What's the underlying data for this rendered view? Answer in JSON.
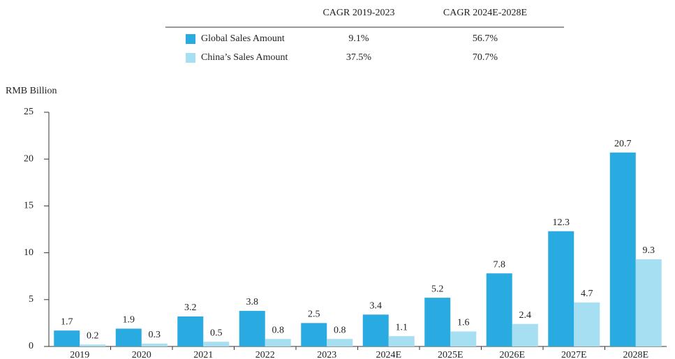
{
  "chart_data": {
    "type": "bar",
    "y_axis_label": "RMB Billion",
    "categories": [
      "2019",
      "2020",
      "2021",
      "2022",
      "2023",
      "2024E",
      "2025E",
      "2026E",
      "2027E",
      "2028E"
    ],
    "cagr_headers": [
      "CAGR 2019-2023",
      "CAGR 2024E-2028E"
    ],
    "series": [
      {
        "name": "Global Sales Amount",
        "color": "#29abe2",
        "values": [
          1.7,
          1.9,
          3.2,
          3.8,
          2.5,
          3.4,
          5.2,
          7.8,
          12.3,
          20.7
        ],
        "cagr_values": [
          9.1,
          56.7
        ],
        "cagr_labels": [
          "9.1%",
          "56.7%"
        ]
      },
      {
        "name": "China’s Sales Amount",
        "color": "#a6def2",
        "values": [
          0.2,
          0.3,
          0.5,
          0.8,
          0.8,
          1.1,
          1.6,
          2.4,
          4.7,
          9.3
        ],
        "cagr_values": [
          37.5,
          70.7
        ],
        "cagr_labels": [
          "37.5%",
          "70.7%"
        ]
      }
    ],
    "ylim": [
      0,
      25
    ],
    "yticks": [
      0,
      5,
      10,
      15,
      20,
      25
    ],
    "grid": false
  }
}
